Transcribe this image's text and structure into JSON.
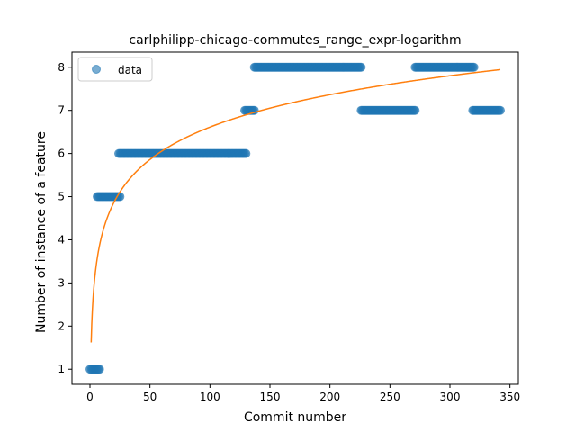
{
  "chart_data": {
    "type": "scatter",
    "title": "carlphilipp-chicago-commutes_range_expr-logarithm",
    "xlabel": "Commit number",
    "ylabel": "Number of instance of a feature",
    "xlim": [
      -15,
      357
    ],
    "ylim": [
      0.65,
      8.35
    ],
    "xticks": [
      0,
      50,
      100,
      150,
      200,
      250,
      300,
      350
    ],
    "yticks": [
      1,
      2,
      3,
      4,
      5,
      6,
      7,
      8
    ],
    "grid": false,
    "legend": {
      "placement": "top-left",
      "entries": [
        "data"
      ]
    },
    "colors": {
      "data": "#1f77b4",
      "fit": "#ff7f0e"
    },
    "series": [
      {
        "name": "data",
        "kind": "scatter",
        "segments": [
          {
            "x_start": 0,
            "x_end": 8,
            "y": 1
          },
          {
            "x_start": 6,
            "x_end": 25,
            "y": 5
          },
          {
            "x_start": 24,
            "x_end": 130,
            "y": 6
          },
          {
            "x_start": 129,
            "x_end": 137,
            "y": 7
          },
          {
            "x_start": 137,
            "x_end": 226,
            "y": 8
          },
          {
            "x_start": 226,
            "x_end": 271,
            "y": 7
          },
          {
            "x_start": 271,
            "x_end": 320,
            "y": 8
          },
          {
            "x_start": 319,
            "x_end": 342,
            "y": 7
          }
        ]
      },
      {
        "kind": "line",
        "model": "a + b*ln(x)",
        "a": 1.62,
        "b": 1.084,
        "x_range": [
          1,
          342
        ]
      }
    ]
  }
}
